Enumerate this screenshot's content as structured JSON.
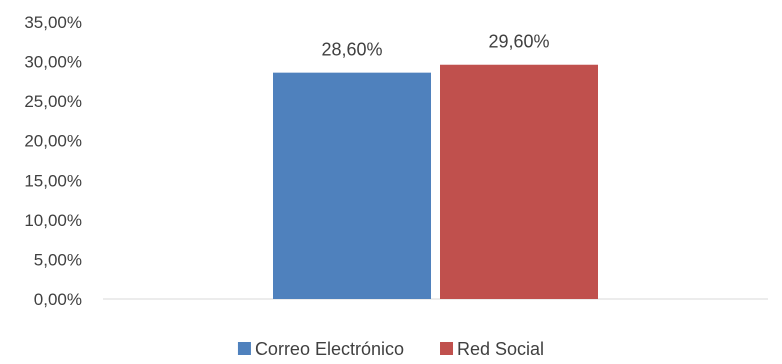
{
  "chart_data": {
    "type": "bar",
    "title": "",
    "xlabel": "",
    "ylabel": "",
    "ylim": [
      0,
      35
    ],
    "y_ticks": [
      "0,00%",
      "5,00%",
      "10,00%",
      "15,00%",
      "20,00%",
      "25,00%",
      "30,00%",
      "35,00%"
    ],
    "grid": false,
    "legend_position": "bottom",
    "series": [
      {
        "name": "Correo Electrónico",
        "value": 28.6,
        "label": "28,60%",
        "color": "#4F81BD"
      },
      {
        "name": "Red Social",
        "value": 29.6,
        "label": "29,60%",
        "color": "#C0504D"
      }
    ]
  }
}
